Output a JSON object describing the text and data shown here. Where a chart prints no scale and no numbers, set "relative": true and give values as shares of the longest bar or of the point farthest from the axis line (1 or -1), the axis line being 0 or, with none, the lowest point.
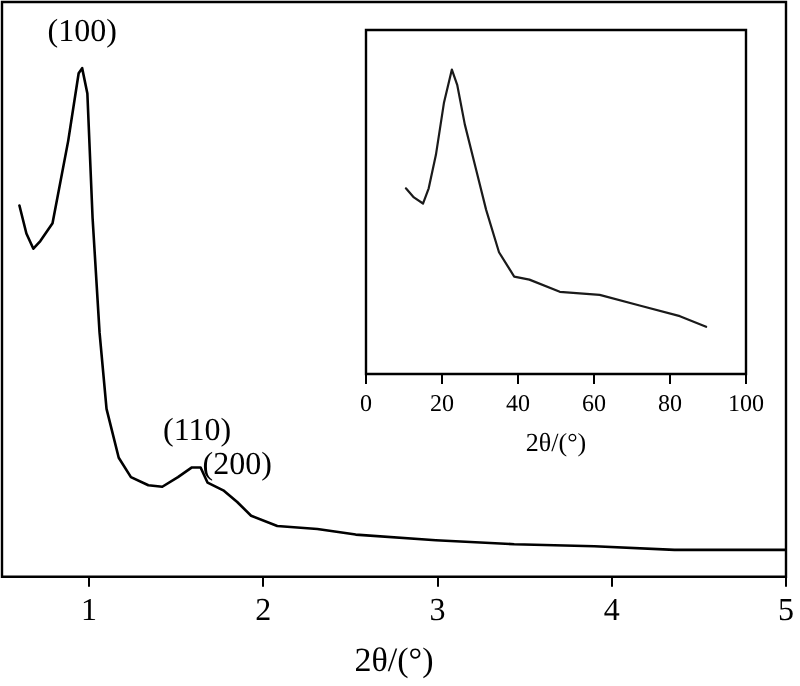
{
  "chart_data": [
    {
      "type": "line",
      "relative": true,
      "xlabel": "2θ/(°)",
      "xlim": [
        0.5,
        5
      ],
      "xticks": [
        1,
        2,
        3,
        4,
        5
      ],
      "tick_labels": "x",
      "grid": false,
      "legend": false,
      "marker": "none",
      "line_style": "solid",
      "x": [
        0.6,
        0.64,
        0.68,
        0.72,
        0.79,
        0.88,
        0.94,
        0.96,
        0.99,
        1.02,
        1.06,
        1.1,
        1.17,
        1.24,
        1.34,
        1.42,
        1.51,
        1.59,
        1.64,
        1.68,
        1.77,
        1.85,
        1.93,
        2.08,
        2.31,
        2.53,
        2.99,
        3.44,
        3.9,
        4.36,
        5.0
      ],
      "series": [
        {
          "color": "#000000",
          "values": [
            0.73,
            0.675,
            0.645,
            0.66,
            0.695,
            0.857,
            0.99,
            1,
            0.95,
            0.705,
            0.48,
            0.33,
            0.234,
            0.196,
            0.18,
            0.177,
            0.196,
            0.215,
            0.215,
            0.185,
            0.17,
            0.147,
            0.12,
            0.1,
            0.094,
            0.083,
            0.072,
            0.064,
            0.06,
            0.053,
            0.053
          ]
        }
      ],
      "annotations": [
        {
          "text": "(100)",
          "x": 0.96,
          "y": 1
        },
        {
          "text": "(110)",
          "x": 1.62,
          "y": 0.215
        },
        {
          "text": "(200)",
          "x": 1.85,
          "y": 0.147
        }
      ]
    },
    {
      "type": "line",
      "relative": true,
      "xlabel": "2θ/(°)",
      "xlim": [
        0,
        100
      ],
      "xticks": [
        0,
        20,
        40,
        60,
        80,
        100
      ],
      "tick_labels": "x",
      "grid": false,
      "legend": false,
      "marker": "none",
      "line_style": "solid",
      "x": [
        10.5,
        12.6,
        15,
        16.5,
        18.4,
        20.5,
        22.6,
        24,
        26,
        29,
        31.6,
        35,
        39,
        43,
        51,
        61.5,
        72,
        82.6,
        89.5
      ],
      "series": [
        {
          "color": "#1a1a1a",
          "values": [
            0.61,
            0.58,
            0.56,
            0.61,
            0.72,
            0.89,
            1,
            0.95,
            0.82,
            0.67,
            0.54,
            0.4,
            0.32,
            0.31,
            0.27,
            0.26,
            0.225,
            0.19,
            0.155
          ]
        }
      ]
    }
  ]
}
